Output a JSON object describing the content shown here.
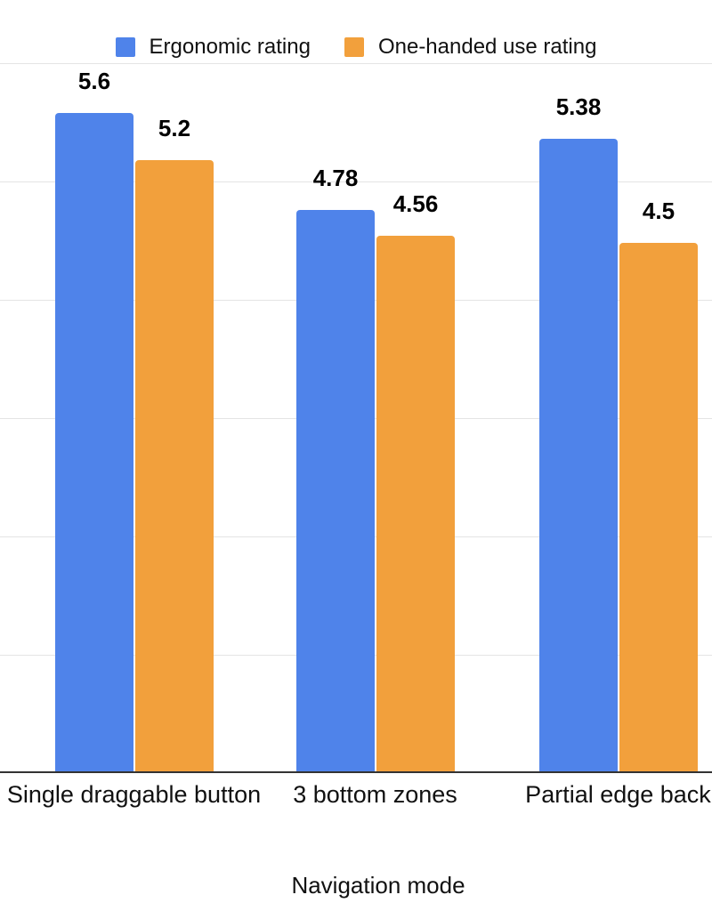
{
  "chart_data": {
    "type": "bar",
    "title": "",
    "categories": [
      "Single draggable button",
      "3 bottom zones",
      "Partial edge back"
    ],
    "series": [
      {
        "name": "Ergonomic rating",
        "color": "#4F83EA",
        "values": [
          5.6,
          4.78,
          5.38
        ]
      },
      {
        "name": "One-handed use rating",
        "color": "#F2A03C",
        "values": [
          5.2,
          4.56,
          4.5
        ]
      }
    ],
    "xlabel": "Navigation mode",
    "ylabel": "",
    "ylim": [
      0,
      6
    ],
    "grid_step": 1,
    "grid": true,
    "y_axis_tick_labels_visible": false,
    "bar_value_labels": [
      "5.6",
      "4.78",
      "5.38",
      "5.2",
      "4.56",
      "4.5"
    ],
    "legend_position": "top"
  },
  "colors": {
    "background": "#FFFFFF",
    "gridline": "#E4E4E4",
    "axis_line": "#333333",
    "label_text": "#000000",
    "series_blue": "#4F83EA",
    "series_orange": "#F2A03C"
  }
}
